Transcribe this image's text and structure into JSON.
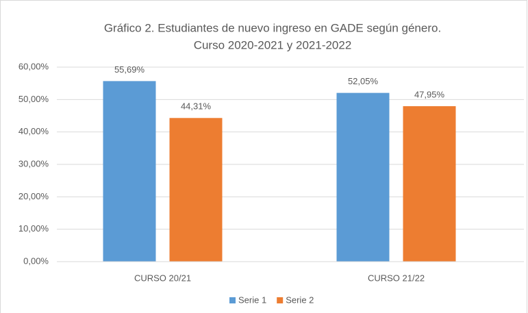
{
  "chart_data": {
    "type": "bar",
    "title": [
      "Gráfico 2. Estudiantes de nuevo ingreso en GADE según género.",
      "Curso 2020-2021 y 2021-2022"
    ],
    "categories": [
      "CURSO 20/21",
      "CURSO 21/22"
    ],
    "series": [
      {
        "name": "Serie 1",
        "color": "#5b9bd5",
        "values": [
          55.69,
          52.05
        ],
        "value_labels": [
          "55,69%",
          "52,05%"
        ]
      },
      {
        "name": "Serie 2",
        "color": "#ed7d31",
        "values": [
          44.31,
          47.95
        ],
        "value_labels": [
          "44,31%",
          "47,95%"
        ]
      }
    ],
    "ylim": [
      0,
      60
    ],
    "yticks": [
      {
        "value": 0,
        "label": "0,00%"
      },
      {
        "value": 10,
        "label": "10,00%"
      },
      {
        "value": 20,
        "label": "20,00%"
      },
      {
        "value": 30,
        "label": "30,00%"
      },
      {
        "value": 40,
        "label": "40,00%"
      },
      {
        "value": 50,
        "label": "50,00%"
      },
      {
        "value": 60,
        "label": "60,00%"
      }
    ],
    "grid": true,
    "legend": "bottom"
  }
}
